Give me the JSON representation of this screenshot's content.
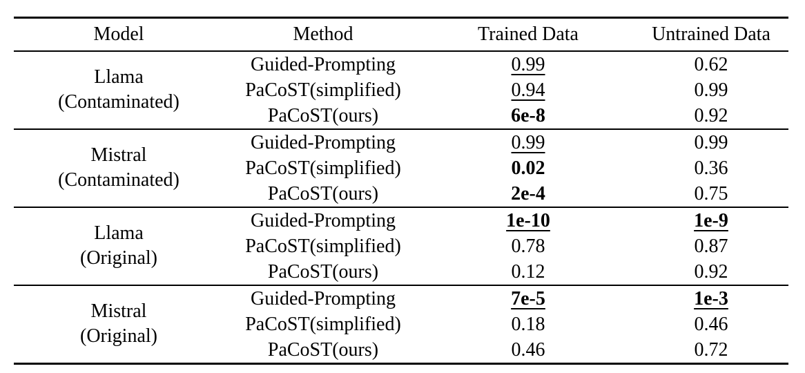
{
  "table": {
    "columns": [
      "Model",
      "Method",
      "Trained Data",
      "Untrained Data"
    ],
    "groups": [
      {
        "model": "Llama",
        "model_note": "(Contaminated)",
        "rows": [
          {
            "method": "Guided-Prompting",
            "trained": "0.99",
            "trained_style": "underline",
            "untrained": "0.62",
            "untrained_style": "plain"
          },
          {
            "method": "PaCoST(simplified)",
            "trained": "0.94",
            "trained_style": "underline",
            "untrained": "0.99",
            "untrained_style": "plain"
          },
          {
            "method": "PaCoST(ours)",
            "trained": "6e-8",
            "trained_style": "bold",
            "untrained": "0.92",
            "untrained_style": "plain"
          }
        ]
      },
      {
        "model": "Mistral",
        "model_note": "(Contaminated)",
        "rows": [
          {
            "method": "Guided-Prompting",
            "trained": "0.99",
            "trained_style": "underline",
            "untrained": "0.99",
            "untrained_style": "plain"
          },
          {
            "method": "PaCoST(simplified)",
            "trained": "0.02",
            "trained_style": "bold",
            "untrained": "0.36",
            "untrained_style": "plain"
          },
          {
            "method": "PaCoST(ours)",
            "trained": "2e-4",
            "trained_style": "bold",
            "untrained": "0.75",
            "untrained_style": "plain"
          }
        ]
      },
      {
        "model": "Llama",
        "model_note": "(Original)",
        "rows": [
          {
            "method": "Guided-Prompting",
            "trained": "1e-10",
            "trained_style": "bold-underline",
            "untrained": "1e-9",
            "untrained_style": "bold-underline"
          },
          {
            "method": "PaCoST(simplified)",
            "trained": "0.78",
            "trained_style": "plain",
            "untrained": "0.87",
            "untrained_style": "plain"
          },
          {
            "method": "PaCoST(ours)",
            "trained": "0.12",
            "trained_style": "plain",
            "untrained": "0.92",
            "untrained_style": "plain"
          }
        ]
      },
      {
        "model": "Mistral",
        "model_note": "(Original)",
        "rows": [
          {
            "method": "Guided-Prompting",
            "trained": "7e-5",
            "trained_style": "bold-underline",
            "untrained": "1e-3",
            "untrained_style": "bold-underline"
          },
          {
            "method": "PaCoST(simplified)",
            "trained": "0.18",
            "trained_style": "plain",
            "untrained": "0.46",
            "untrained_style": "plain"
          },
          {
            "method": "PaCoST(ours)",
            "trained": "0.46",
            "trained_style": "plain",
            "untrained": "0.72",
            "untrained_style": "plain"
          }
        ]
      }
    ]
  }
}
